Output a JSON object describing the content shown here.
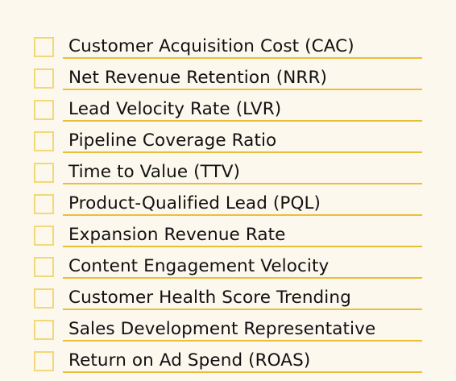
{
  "checklist": {
    "items": [
      {
        "label": "Customer Acquisition Cost (CAC)",
        "checked": false
      },
      {
        "label": "Net Revenue Retention (NRR)",
        "checked": false
      },
      {
        "label": "Lead Velocity Rate (LVR)",
        "checked": false
      },
      {
        "label": "Pipeline Coverage Ratio",
        "checked": false
      },
      {
        "label": "Time to Value (TTV)",
        "checked": false
      },
      {
        "label": "Product-Qualified Lead (PQL)",
        "checked": false
      },
      {
        "label": "Expansion Revenue Rate",
        "checked": false
      },
      {
        "label": "Content Engagement Velocity",
        "checked": false
      },
      {
        "label": "Customer Health Score Trending",
        "checked": false
      },
      {
        "label": "Sales Development Representative",
        "checked": false
      },
      {
        "label": "Return on Ad Spend (ROAS)",
        "checked": false
      }
    ]
  },
  "colors": {
    "background": "#fdf8ee",
    "checkbox_border": "#f2d878",
    "underline": "#e9bf3a",
    "text": "#111111"
  }
}
